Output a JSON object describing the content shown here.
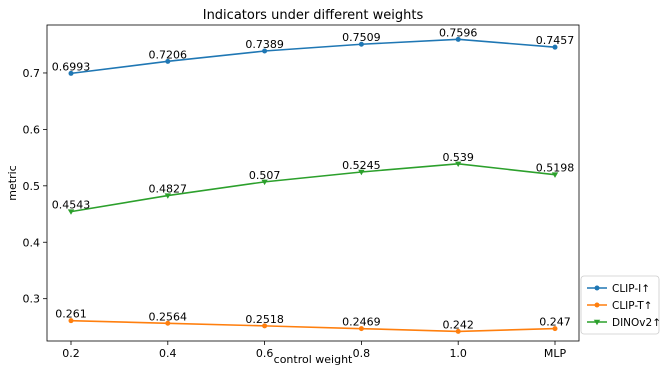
{
  "chart_data": {
    "type": "line",
    "title": "Indicators under different weights",
    "xlabel": "control weight",
    "ylabel": "metric",
    "categories": [
      "0.2",
      "0.4",
      "0.6",
      "0.8",
      "1.0",
      "MLP"
    ],
    "ylim": [
      0.225,
      0.785
    ],
    "yticks": [
      0.3,
      0.4,
      0.5,
      0.6,
      0.7
    ],
    "ytick_labels": [
      "0.3",
      "0.4",
      "0.5",
      "0.6",
      "0.7"
    ],
    "grid": false,
    "legend_position": "outside-bottom-right",
    "series": [
      {
        "name": "CLIP-I↑",
        "color": "#1f77b4",
        "marker": "circle",
        "values": [
          0.6993,
          0.7206,
          0.7389,
          0.7509,
          0.7596,
          0.7457
        ],
        "labels": [
          "0.6993",
          "0.7206",
          "0.7389",
          "0.7509",
          "0.7596",
          "0.7457"
        ]
      },
      {
        "name": "CLIP-T↑",
        "color": "#ff7f0e",
        "marker": "circle",
        "values": [
          0.261,
          0.2564,
          0.2518,
          0.2469,
          0.242,
          0.247
        ],
        "labels": [
          "0.261",
          "0.2564",
          "0.2518",
          "0.2469",
          "0.242",
          "0.247"
        ]
      },
      {
        "name": "DINOv2↑",
        "color": "#2ca02c",
        "marker": "triangle-down",
        "values": [
          0.4543,
          0.4827,
          0.507,
          0.5245,
          0.539,
          0.5198
        ],
        "labels": [
          "0.4543",
          "0.4827",
          "0.507",
          "0.5245",
          "0.539",
          "0.5198"
        ]
      }
    ]
  }
}
